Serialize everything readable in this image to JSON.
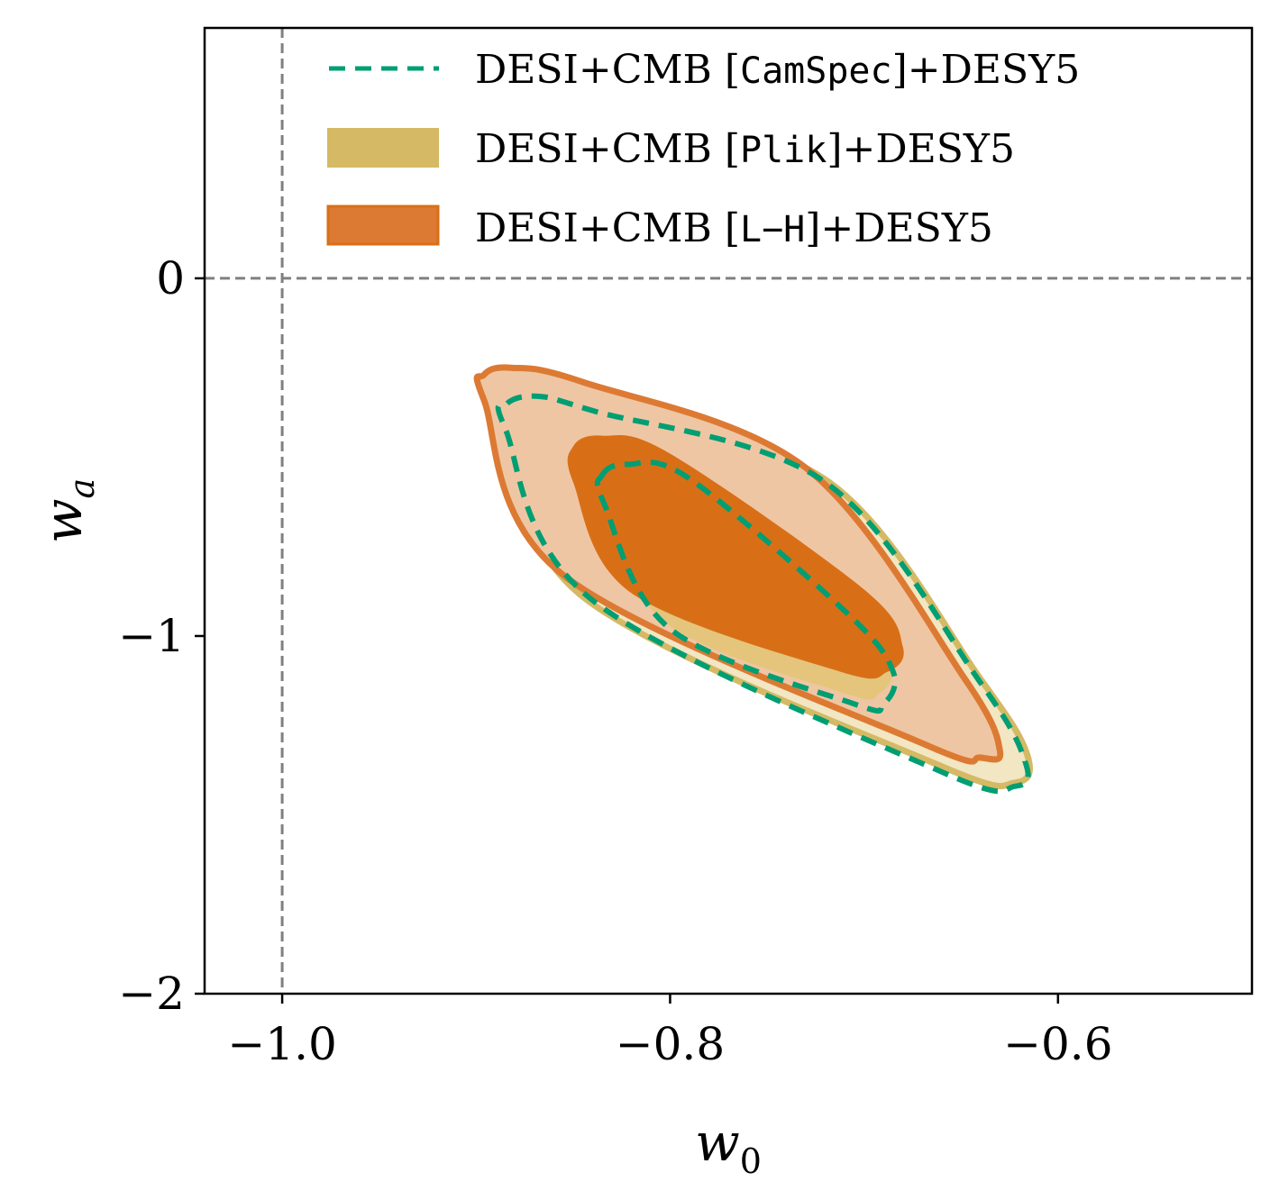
{
  "chart_data": {
    "type": "contour",
    "xlabel_main": "w",
    "xlabel_sub": "0",
    "ylabel_main": "w",
    "ylabel_sub": "a",
    "xlim": [
      -1.04,
      -0.5
    ],
    "ylim": [
      -2.0,
      0.7
    ],
    "xticks": [
      -1.0,
      -0.8,
      -0.6
    ],
    "xtick_labels": [
      "−1.0",
      "−0.8",
      "−0.6"
    ],
    "yticks": [
      0,
      -1,
      -2
    ],
    "ytick_labels": [
      "0",
      "−1",
      "−2"
    ],
    "reference_lines": {
      "w0": -1.0,
      "wa": 0.0
    },
    "legend_placement": "top-right",
    "series": [
      {
        "name": "camspec",
        "legend_prefix": "DESI+CMB [",
        "legend_code": "CamSpec",
        "legend_suffix": "]+DESY5",
        "style": "dashed-line",
        "color": "#009E73",
        "contours": {
          "outer_95": [
            [
              -0.884,
              -0.35
            ],
            [
              -0.868,
              -0.33
            ],
            [
              -0.84,
              -0.37
            ],
            [
              -0.72,
              -0.57
            ],
            [
              -0.64,
              -1.13
            ],
            [
              -0.617,
              -1.35
            ],
            [
              -0.622,
              -1.42
            ],
            [
              -0.66,
              -1.38
            ],
            [
              -0.84,
              -0.9
            ],
            [
              -0.885,
              -0.42
            ]
          ],
          "inner_68": [
            [
              -0.835,
              -0.55
            ],
            [
              -0.822,
              -0.52
            ],
            [
              -0.79,
              -0.56
            ],
            [
              -0.708,
              -0.94
            ],
            [
              -0.685,
              -1.1
            ],
            [
              -0.69,
              -1.19
            ],
            [
              -0.705,
              -1.19
            ],
            [
              -0.8,
              -0.98
            ],
            [
              -0.834,
              -0.63
            ]
          ]
        }
      },
      {
        "name": "plik",
        "legend_prefix": "DESI+CMB [",
        "legend_code": "Plik",
        "legend_suffix": "]+DESY5",
        "style": "filled",
        "color": "#D5B964",
        "fill_outer": "#F2E6C3",
        "fill_inner": "#E5C57C",
        "contours": {
          "outer_95": [
            [
              -0.883,
              -0.33
            ],
            [
              -0.868,
              -0.31
            ],
            [
              -0.838,
              -0.35
            ],
            [
              -0.718,
              -0.57
            ],
            [
              -0.64,
              -1.12
            ],
            [
              -0.616,
              -1.33
            ],
            [
              -0.622,
              -1.41
            ],
            [
              -0.662,
              -1.36
            ],
            [
              -0.845,
              -0.89
            ],
            [
              -0.884,
              -0.4
            ]
          ],
          "inner_68": [
            [
              -0.838,
              -0.52
            ],
            [
              -0.822,
              -0.5
            ],
            [
              -0.79,
              -0.55
            ],
            [
              -0.706,
              -0.93
            ],
            [
              -0.686,
              -1.08
            ],
            [
              -0.692,
              -1.16
            ],
            [
              -0.71,
              -1.16
            ],
            [
              -0.803,
              -0.96
            ],
            [
              -0.838,
              -0.6
            ]
          ]
        }
      },
      {
        "name": "lh",
        "legend_prefix": "DESI+CMB [",
        "legend_code": "L−H",
        "legend_suffix": "]+DESY5",
        "style": "filled",
        "color": "#DC7A33",
        "fill_outer": "#EFC6A3",
        "fill_inner": "#D86F17",
        "contours": {
          "outer_95": [
            [
              -0.896,
              -0.27
            ],
            [
              -0.882,
              -0.25
            ],
            [
              -0.845,
              -0.29
            ],
            [
              -0.73,
              -0.53
            ],
            [
              -0.648,
              -1.12
            ],
            [
              -0.63,
              -1.32
            ],
            [
              -0.64,
              -1.34
            ],
            [
              -0.67,
              -1.3
            ],
            [
              -0.855,
              -0.83
            ],
            [
              -0.896,
              -0.34
            ]
          ],
          "inner_68": [
            [
              -0.85,
              -0.47
            ],
            [
              -0.835,
              -0.44
            ],
            [
              -0.8,
              -0.49
            ],
            [
              -0.7,
              -0.87
            ],
            [
              -0.68,
              -1.03
            ],
            [
              -0.688,
              -1.1
            ],
            [
              -0.712,
              -1.1
            ],
            [
              -0.82,
              -0.88
            ],
            [
              -0.85,
              -0.57
            ]
          ]
        }
      }
    ]
  }
}
